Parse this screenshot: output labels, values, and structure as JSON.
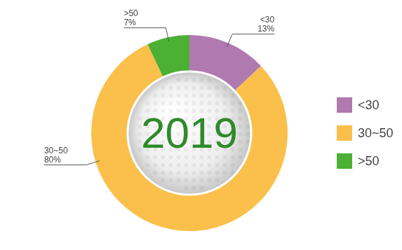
{
  "chart_data": {
    "type": "doughnut",
    "title": "2019",
    "categories": [
      "<30",
      "30~50",
      ">50"
    ],
    "values": [
      13,
      80,
      7
    ],
    "value_labels": [
      "13%",
      "80%",
      "7%"
    ],
    "data_labels": true,
    "colors": [
      "#b07ab0",
      "#fbc04c",
      "#4cb034"
    ],
    "legend": "right"
  }
}
